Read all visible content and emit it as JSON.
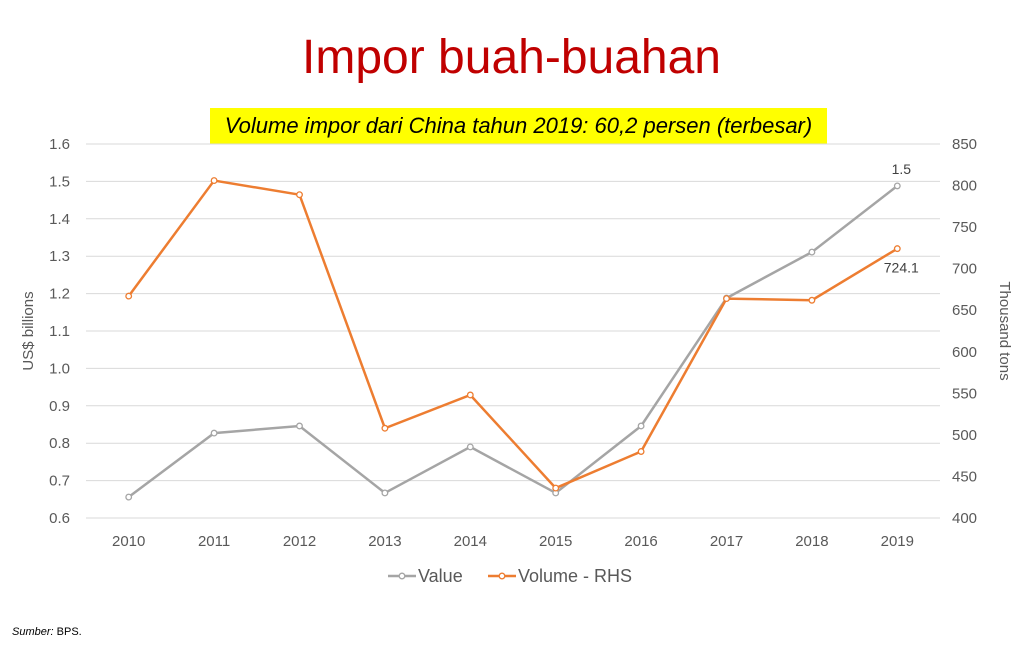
{
  "title": "Impor buah-buahan",
  "subtitle": "Volume impor dari China tahun 2019: 60,2 persen (terbesar)",
  "source_label": "Sumber:",
  "source_value": "BPS.",
  "chart_data": {
    "type": "line",
    "title": "Impor buah-buahan",
    "categories": [
      "2010",
      "2011",
      "2012",
      "2013",
      "2014",
      "2015",
      "2016",
      "2017",
      "2018",
      "2019"
    ],
    "ylabel": "US$ billions",
    "y2label": "Thousand tons",
    "ylim": [
      0.6,
      1.6
    ],
    "y2lim": [
      400,
      850
    ],
    "yticks": [
      "0.6",
      "0.7",
      "0.8",
      "0.9",
      "1.0",
      "1.1",
      "1.2",
      "1.3",
      "1.4",
      "1.5",
      "1.6"
    ],
    "y2ticks": [
      "400",
      "450",
      "500",
      "550",
      "600",
      "650",
      "700",
      "750",
      "800",
      "850"
    ],
    "grid": true,
    "legend_position": "bottom",
    "series": [
      {
        "name": "Value",
        "axis": "left",
        "color": "#a5a5a5",
        "values": [
          0.656,
          0.827,
          0.846,
          0.667,
          0.79,
          0.667,
          0.846,
          1.188,
          1.311,
          1.488
        ],
        "end_label": "1.5"
      },
      {
        "name": "Volume - RHS",
        "axis": "right",
        "color": "#ed7d31",
        "values": [
          667,
          806,
          789,
          508,
          548,
          436,
          480,
          664,
          662,
          724.1
        ],
        "end_label": "724.1"
      }
    ]
  }
}
